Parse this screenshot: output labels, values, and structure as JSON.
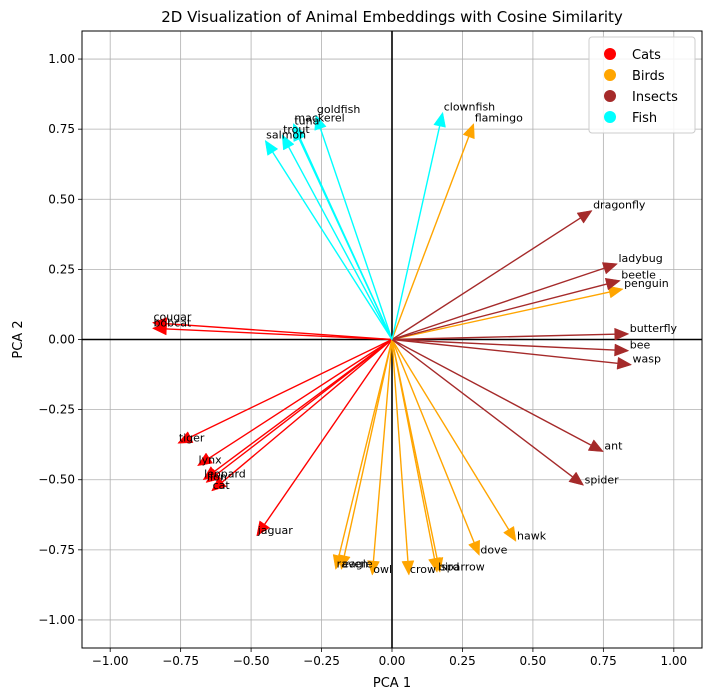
{
  "chart_data": {
    "type": "scatter",
    "title": "2D Visualization of Animal Embeddings with Cosine Similarity",
    "xlabel": "PCA 1",
    "ylabel": "PCA 2",
    "xlim": [
      -1.1,
      1.1
    ],
    "ylim": [
      -1.1,
      1.1
    ],
    "xticks": [
      -1.0,
      -0.75,
      -0.5,
      -0.25,
      0.0,
      0.25,
      0.5,
      0.75,
      1.0
    ],
    "yticks": [
      -1.0,
      -0.75,
      -0.5,
      -0.25,
      0.0,
      0.25,
      0.5,
      0.75,
      1.0
    ],
    "xtick_labels": [
      "−1.00",
      "−0.75",
      "−0.50",
      "−0.25",
      "0.00",
      "0.25",
      "0.50",
      "0.75",
      "1.00"
    ],
    "ytick_labels": [
      "−1.00",
      "−0.75",
      "−0.50",
      "−0.25",
      "0.00",
      "0.25",
      "0.50",
      "0.75",
      "1.00"
    ],
    "grid": true,
    "legend_position": "top-right",
    "series": [
      {
        "name": "Cats",
        "color": "#ff0000",
        "points": [
          {
            "label": "cougar",
            "x": -0.85,
            "y": 0.06
          },
          {
            "label": "bobcat",
            "x": -0.85,
            "y": 0.04
          },
          {
            "label": "tiger",
            "x": -0.76,
            "y": -0.37
          },
          {
            "label": "lynx",
            "x": -0.69,
            "y": -0.45
          },
          {
            "label": "leopard",
            "x": -0.67,
            "y": -0.5
          },
          {
            "label": "lion",
            "x": -0.66,
            "y": -0.51
          },
          {
            "label": "cat",
            "x": -0.64,
            "y": -0.54
          },
          {
            "label": "jaguar",
            "x": -0.48,
            "y": -0.7
          }
        ]
      },
      {
        "name": "Birds",
        "color": "#ffa500",
        "points": [
          {
            "label": "flamingo",
            "x": 0.29,
            "y": 0.77
          },
          {
            "label": "penguin",
            "x": 0.82,
            "y": 0.18
          },
          {
            "label": "hawk",
            "x": 0.44,
            "y": -0.72
          },
          {
            "label": "dove",
            "x": 0.31,
            "y": -0.77
          },
          {
            "label": "sparrow",
            "x": 0.17,
            "y": -0.83
          },
          {
            "label": "bird",
            "x": 0.16,
            "y": -0.83
          },
          {
            "label": "crow",
            "x": 0.06,
            "y": -0.84
          },
          {
            "label": "owl",
            "x": -0.07,
            "y": -0.84
          },
          {
            "label": "eagle",
            "x": -0.18,
            "y": -0.82
          },
          {
            "label": "raven",
            "x": -0.2,
            "y": -0.82
          }
        ]
      },
      {
        "name": "Insects",
        "color": "#a52a2a",
        "points": [
          {
            "label": "dragonfly",
            "x": 0.71,
            "y": 0.46
          },
          {
            "label": "ladybug",
            "x": 0.8,
            "y": 0.27
          },
          {
            "label": "beetle",
            "x": 0.81,
            "y": 0.21
          },
          {
            "label": "butterfly",
            "x": 0.84,
            "y": 0.02
          },
          {
            "label": "bee",
            "x": 0.84,
            "y": -0.04
          },
          {
            "label": "wasp",
            "x": 0.85,
            "y": -0.09
          },
          {
            "label": "ant",
            "x": 0.75,
            "y": -0.4
          },
          {
            "label": "spider",
            "x": 0.68,
            "y": -0.52
          }
        ]
      },
      {
        "name": "Fish",
        "color": "#00ffff",
        "points": [
          {
            "label": "clownfish",
            "x": 0.18,
            "y": 0.81
          },
          {
            "label": "goldfish",
            "x": -0.27,
            "y": 0.8
          },
          {
            "label": "mackerel",
            "x": -0.35,
            "y": 0.77
          },
          {
            "label": "tuna",
            "x": -0.35,
            "y": 0.76
          },
          {
            "label": "trout",
            "x": -0.39,
            "y": 0.73
          },
          {
            "label": "salmon",
            "x": -0.45,
            "y": 0.71
          }
        ]
      }
    ]
  }
}
